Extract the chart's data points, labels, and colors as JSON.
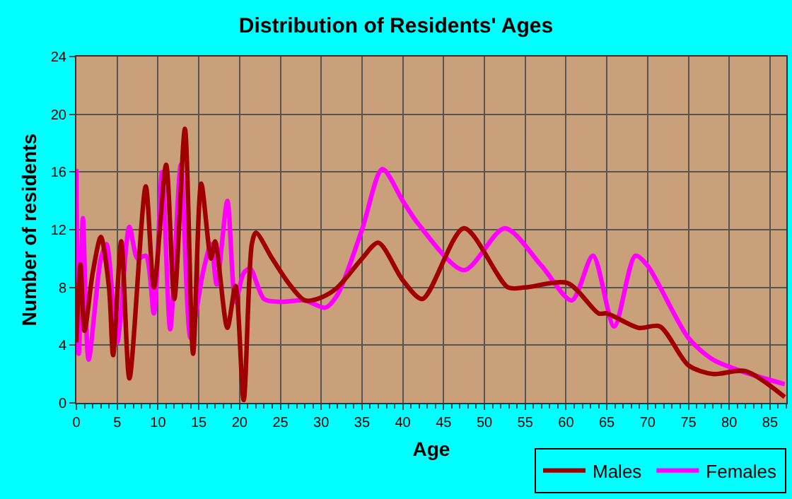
{
  "chart_data": {
    "type": "line",
    "title": "Distribution of Residents' Ages",
    "xlabel": "Age",
    "ylabel": "Number of residents",
    "xlim": [
      0,
      87
    ],
    "xticks": [
      0,
      5,
      10,
      15,
      20,
      25,
      30,
      35,
      40,
      45,
      50,
      55,
      60,
      65,
      70,
      75,
      80,
      85
    ],
    "ylim": [
      0,
      24
    ],
    "yticks": [
      0,
      4,
      8,
      12,
      16,
      20,
      24
    ],
    "grid": true,
    "legend": "bottom right",
    "series": [
      {
        "name": "Males",
        "color": "#a00000",
        "x": [
          0,
          0.5,
          1,
          2,
          3,
          4,
          4.5,
          5.5,
          6.5,
          8.5,
          9.5,
          11,
          12,
          13.3,
          14.3,
          15.3,
          16.5,
          17,
          18.5,
          19.5,
          20.5,
          21.5,
          22,
          24,
          26,
          28,
          30,
          32,
          35,
          37,
          40,
          42.4,
          47.5,
          52.9,
          55,
          60.2,
          64,
          65,
          68.9,
          71.5,
          75,
          78,
          82,
          86.8
        ],
        "values": [
          4.2,
          9.6,
          5,
          9,
          11.5,
          8,
          3.3,
          11.2,
          1.7,
          15,
          8,
          16.5,
          7.2,
          19,
          3.4,
          15.2,
          10,
          11.2,
          5.2,
          8.1,
          0.2,
          11,
          11.8,
          10,
          8.3,
          7.1,
          7.3,
          8,
          10,
          11.1,
          8.5,
          7.2,
          12.1,
          8,
          8,
          8.3,
          6.2,
          6.2,
          5.2,
          5.3,
          2.6,
          2,
          2.2,
          0.4
        ]
      },
      {
        "name": "Females",
        "color": "#ff00ff",
        "x": [
          0,
          0.3,
          0.8,
          1.5,
          3,
          3.7,
          5,
          6.5,
          7.5,
          8.5,
          9.5,
          10.5,
          11.5,
          12.8,
          14,
          15.5,
          16.5,
          17.2,
          18.5,
          19.5,
          20.5,
          21.3,
          23,
          25,
          28,
          30.5,
          32,
          35,
          37.5,
          40,
          41.9,
          47.5,
          52.5,
          57,
          60.7,
          63.3,
          65.9,
          68.5,
          70,
          75,
          78,
          82,
          86.8
        ],
        "values": [
          16.2,
          3.4,
          12.8,
          3,
          10,
          11,
          4.2,
          12.2,
          10,
          10.2,
          6.2,
          16,
          5.1,
          16.5,
          4.5,
          9,
          11,
          8.2,
          14,
          7,
          9,
          9.3,
          7.2,
          7,
          7.1,
          6.6,
          7.5,
          12,
          16.2,
          14,
          12.4,
          9.2,
          12.1,
          9.5,
          7.1,
          10.2,
          5.3,
          10.2,
          9.5,
          4.5,
          3,
          2.1,
          1.3
        ]
      }
    ]
  }
}
